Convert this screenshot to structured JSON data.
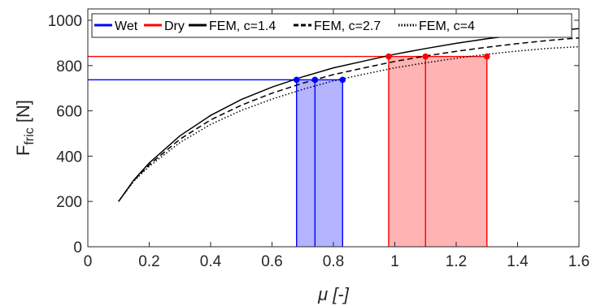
{
  "chart_data": {
    "type": "line",
    "xlabel": "μ [-]",
    "ylabel_main": "F",
    "ylabel_sub": "fric",
    "ylabel_unit": " [N]",
    "xlim": [
      0,
      1.6
    ],
    "ylim": [
      0,
      1050
    ],
    "xticks": [
      "0",
      "0.2",
      "0.4",
      "0.6",
      "0.8",
      "1",
      "1.2",
      "1.4",
      "1.6"
    ],
    "yticks": [
      "0",
      "200",
      "400",
      "600",
      "800",
      "1000"
    ],
    "grid": false,
    "legend_position": "top",
    "colors": {
      "wet": "#0000ff",
      "dry": "#ff0000",
      "fem": "#000000",
      "wet_fill": "#b3b3ff",
      "dry_fill": "#ffb3b3"
    },
    "legend": [
      "Wet",
      "Dry",
      "FEM, c=1.4",
      "FEM, c=2.7",
      "FEM, c=4"
    ],
    "series": [
      {
        "name": "FEM, c=1.4",
        "style": "solid",
        "x": [
          0.1,
          0.15,
          0.2,
          0.3,
          0.4,
          0.5,
          0.6,
          0.7,
          0.8,
          0.9,
          1.0,
          1.1,
          1.2,
          1.3,
          1.4,
          1.5,
          1.6
        ],
        "y": [
          200,
          295,
          370,
          490,
          580,
          650,
          705,
          750,
          790,
          820,
          850,
          875,
          898,
          918,
          935,
          950,
          963
        ]
      },
      {
        "name": "FEM, c=2.7",
        "style": "dashed",
        "x": [
          0.1,
          0.15,
          0.2,
          0.3,
          0.4,
          0.5,
          0.6,
          0.7,
          0.8,
          0.9,
          1.0,
          1.1,
          1.2,
          1.3,
          1.4,
          1.5,
          1.6
        ],
        "y": [
          200,
          293,
          362,
          475,
          560,
          625,
          678,
          722,
          760,
          790,
          818,
          842,
          863,
          881,
          897,
          911,
          922
        ]
      },
      {
        "name": "FEM, c=4",
        "style": "dotted",
        "x": [
          0.1,
          0.15,
          0.2,
          0.3,
          0.4,
          0.5,
          0.6,
          0.7,
          0.8,
          0.9,
          1.0,
          1.1,
          1.2,
          1.3,
          1.4,
          1.5,
          1.6
        ],
        "y": [
          200,
          290,
          355,
          460,
          540,
          602,
          652,
          695,
          732,
          762,
          790,
          812,
          832,
          850,
          864,
          876,
          883
        ]
      }
    ],
    "wet": {
      "force": 737,
      "points": [
        0.68,
        0.74,
        0.83
      ]
    },
    "dry": {
      "force": 840,
      "points": [
        0.98,
        1.1,
        1.3
      ]
    }
  }
}
